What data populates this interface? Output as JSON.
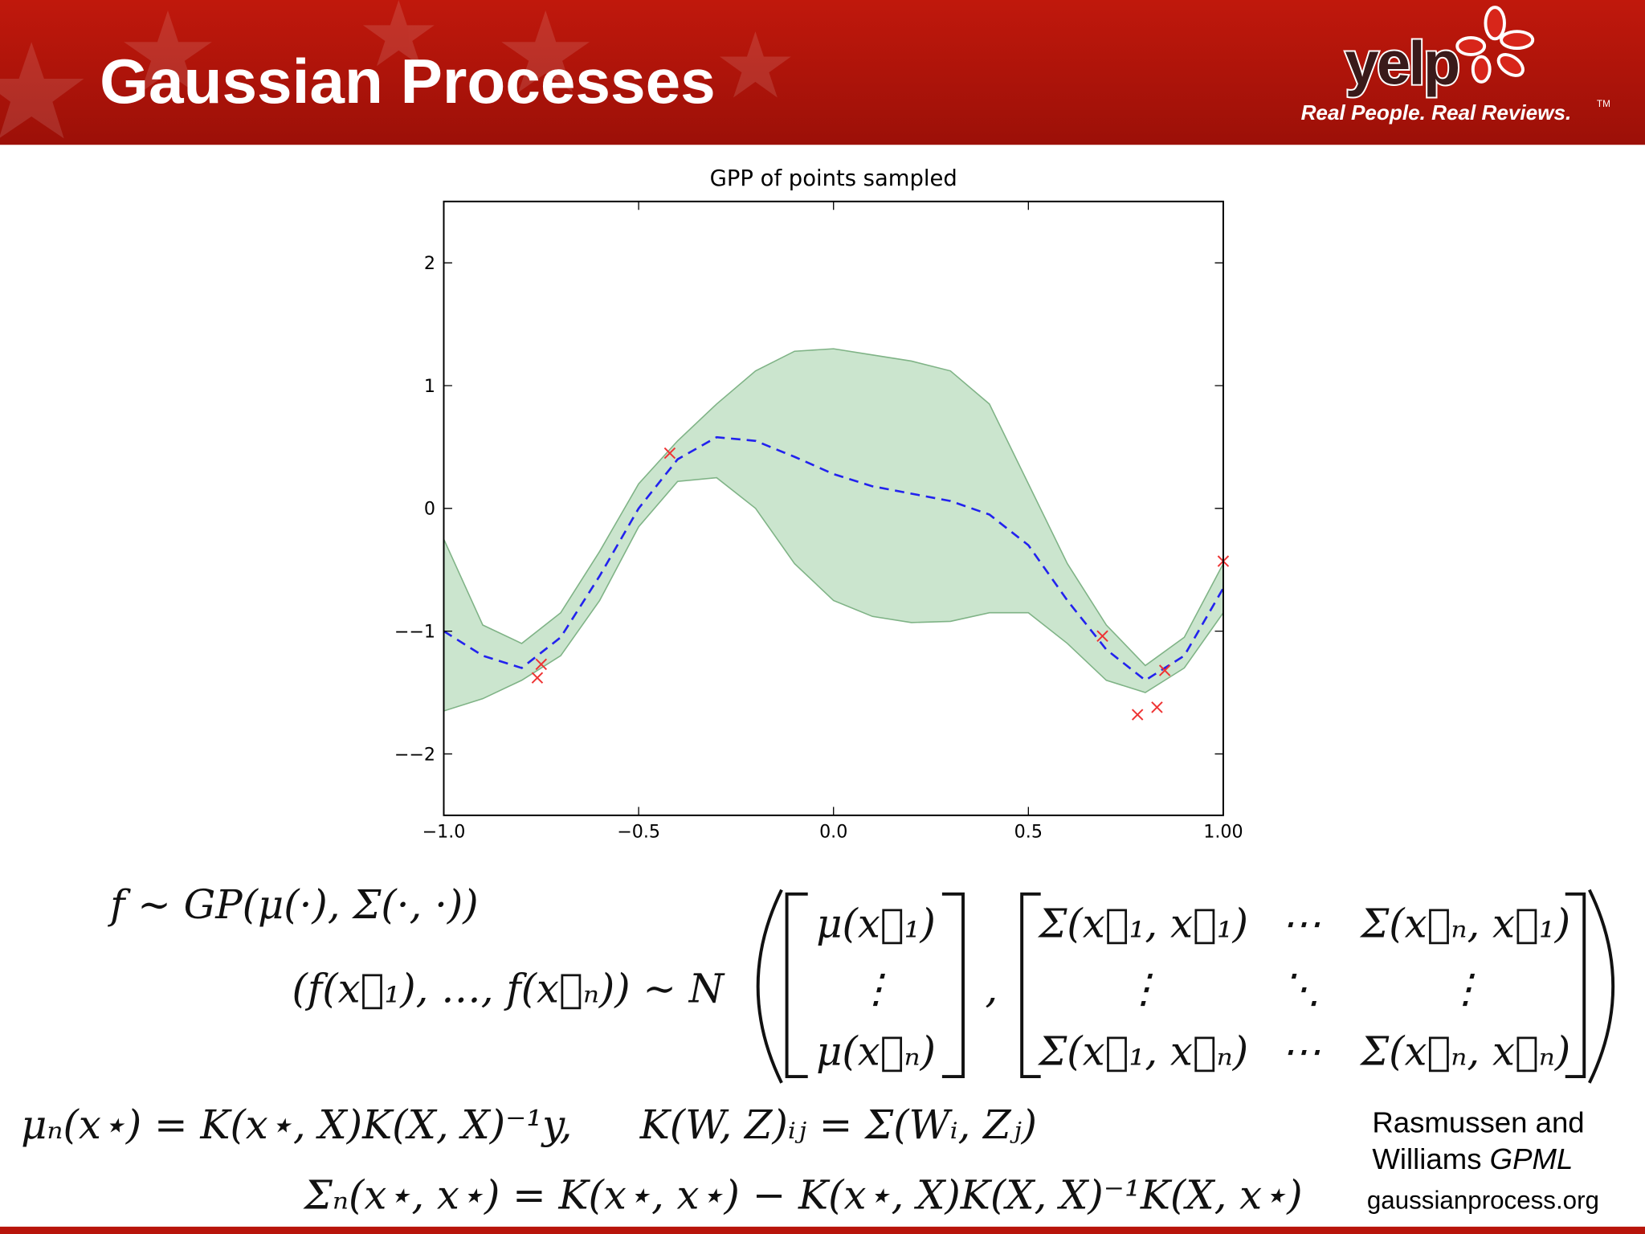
{
  "header": {
    "title": "Gaussian Processes",
    "logo": "yelp",
    "tagline": "Real People. Real Reviews.",
    "trademark": "TM"
  },
  "chart_data": {
    "type": "line",
    "title": "GPP of points sampled",
    "x": [
      -1.0,
      -0.9,
      -0.8,
      -0.7,
      -0.6,
      -0.5,
      -0.4,
      -0.3,
      -0.2,
      -0.1,
      0.0,
      0.1,
      0.2,
      0.3,
      0.4,
      0.5,
      0.6,
      0.7,
      0.8,
      0.9,
      1.0
    ],
    "mean": {
      "color": "#2222ee",
      "values": [
        -1.0,
        -1.2,
        -1.3,
        -1.05,
        -0.55,
        0.0,
        0.4,
        0.58,
        0.55,
        0.42,
        0.28,
        0.18,
        0.12,
        0.06,
        -0.05,
        -0.3,
        -0.75,
        -1.15,
        -1.4,
        -1.2,
        -0.65
      ]
    },
    "band": {
      "color": "#a9d4ae",
      "upper": [
        -0.25,
        -0.95,
        -1.1,
        -0.85,
        -0.35,
        0.2,
        0.55,
        0.85,
        1.12,
        1.28,
        1.3,
        1.25,
        1.2,
        1.12,
        0.85,
        0.2,
        -0.45,
        -0.95,
        -1.28,
        -1.05,
        -0.45
      ],
      "lower": [
        -1.65,
        -1.55,
        -1.4,
        -1.2,
        -0.75,
        -0.15,
        0.22,
        0.25,
        0.0,
        -0.45,
        -0.75,
        -0.88,
        -0.93,
        -0.92,
        -0.85,
        -0.85,
        -1.1,
        -1.4,
        -1.5,
        -1.3,
        -0.85
      ]
    },
    "points": {
      "color": "#ee3333",
      "x": [
        -0.75,
        -0.76,
        -0.42,
        0.69,
        0.78,
        0.83,
        0.85,
        1.0
      ],
      "y": [
        -1.27,
        -1.38,
        0.45,
        -1.04,
        -1.68,
        -1.62,
        -1.32,
        -0.43
      ]
    },
    "xlim": [
      -1,
      1
    ],
    "ylim": [
      -2.5,
      2.5
    ],
    "xticks": [
      {
        "value": -1,
        "label": "−1.0"
      },
      {
        "value": -0.5,
        "label": "−0.5"
      },
      {
        "value": 0,
        "label": "0.0"
      },
      0.5,
      {
        "value": 1,
        "label": "1.00"
      }
    ],
    "yticks": [
      {
        "value": -2,
        "label": "−−2"
      },
      {
        "value": -1,
        "label": "−−1"
      },
      0,
      1,
      2
    ]
  },
  "equations": {
    "prior": "f ∼ GP(μ(·), Σ(·, ·))",
    "joint_lhs": "(f(x⃗₁), …, f(x⃗ₙ)) ∼ N",
    "mean_vector": [
      "μ(x⃗₁)",
      "⋮",
      "μ(x⃗ₙ)"
    ],
    "separator": ",",
    "cov_matrix": [
      [
        "Σ(x⃗₁, x⃗₁)",
        "⋯",
        "Σ(x⃗ₙ, x⃗₁)"
      ],
      [
        "⋮",
        "⋱",
        "⋮"
      ],
      [
        "Σ(x⃗₁, x⃗ₙ)",
        "⋯",
        "Σ(x⃗ₙ, x⃗ₙ)"
      ]
    ],
    "posterior_mean": "μₙ(x⋆) = K(x⋆, X)K(X, X)⁻¹y,",
    "kernel_def": "K(W, Z)ᵢⱼ = Σ(Wᵢ, Zⱼ)",
    "posterior_cov": "Σₙ(x⋆, x⋆) = K(x⋆, x⋆) − K(x⋆, X)K(X, X)⁻¹K(X, x⋆)"
  },
  "citation": {
    "line1": "Rasmussen and",
    "line2": "Williams",
    "line2_italic": "GPML",
    "url": "gaussianprocess.org"
  }
}
